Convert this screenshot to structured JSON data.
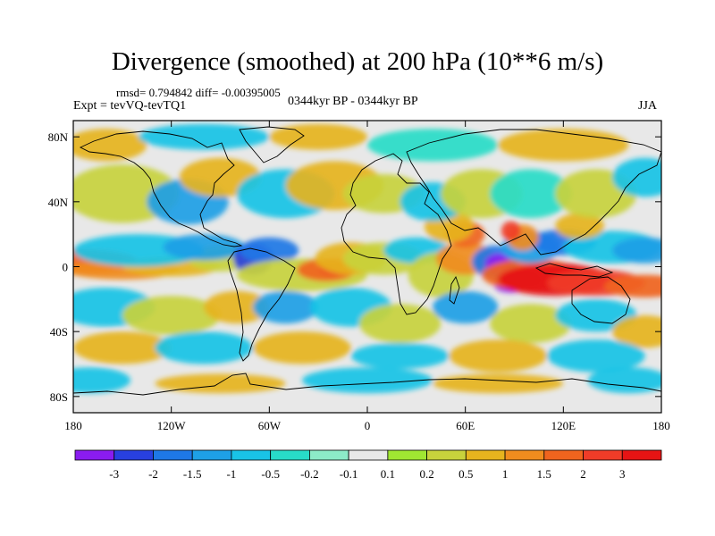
{
  "title": "Divergence (smoothed) at 200 hPa (10**6 m/s)",
  "stats": "rmsd= 0.794842  diff= -0.00395005",
  "expt": "Expt = tevVQ-tevTQ1",
  "period": "0344kyr BP - 0344kyr BP",
  "season": "JJA",
  "chart_data": {
    "type": "heatmap",
    "variable": "200 hPa divergence difference (smoothed)",
    "units": "10**6 m/s",
    "x_ticks": [
      "180",
      "120W",
      "60W",
      "0",
      "60E",
      "120E",
      "180"
    ],
    "y_ticks": [
      "80N",
      "40N",
      "0",
      "40S",
      "80S"
    ],
    "xlim": [
      -180,
      180
    ],
    "ylim": [
      -90,
      90
    ],
    "colorbar": {
      "labels": [
        "-3",
        "-2",
        "-1.5",
        "-1",
        "-0.5",
        "-0.2",
        "-0.1",
        "0.1",
        "0.2",
        "0.5",
        "1",
        "1.5",
        "2",
        "3"
      ],
      "colors": [
        "#8a1cf0",
        "#2840e0",
        "#1e78e6",
        "#1ea0e6",
        "#19c3e6",
        "#28dcc8",
        "#8cebc8",
        "#e8e8e8",
        "#a0e632",
        "#c8d23c",
        "#e6b41e",
        "#f08c1e",
        "#f0641e",
        "#f03c28",
        "#e61414"
      ]
    },
    "features": [
      {
        "lon": 80,
        "lat": 3,
        "value": -3,
        "note": "strongest convergence, central Indian Ocean"
      },
      {
        "lon": 110,
        "lat": -5,
        "value": 3,
        "note": "strong divergence, Maritime Continent"
      },
      {
        "lon": -25,
        "lat": -2,
        "value": 2,
        "note": "divergence, tropical Atlantic"
      },
      {
        "lon": 95,
        "lat": 18,
        "value": 2,
        "note": "divergence, Bay of Bengal"
      },
      {
        "lon": -75,
        "lat": 5,
        "value": -1.5,
        "note": "convergence, northern South America"
      }
    ]
  }
}
